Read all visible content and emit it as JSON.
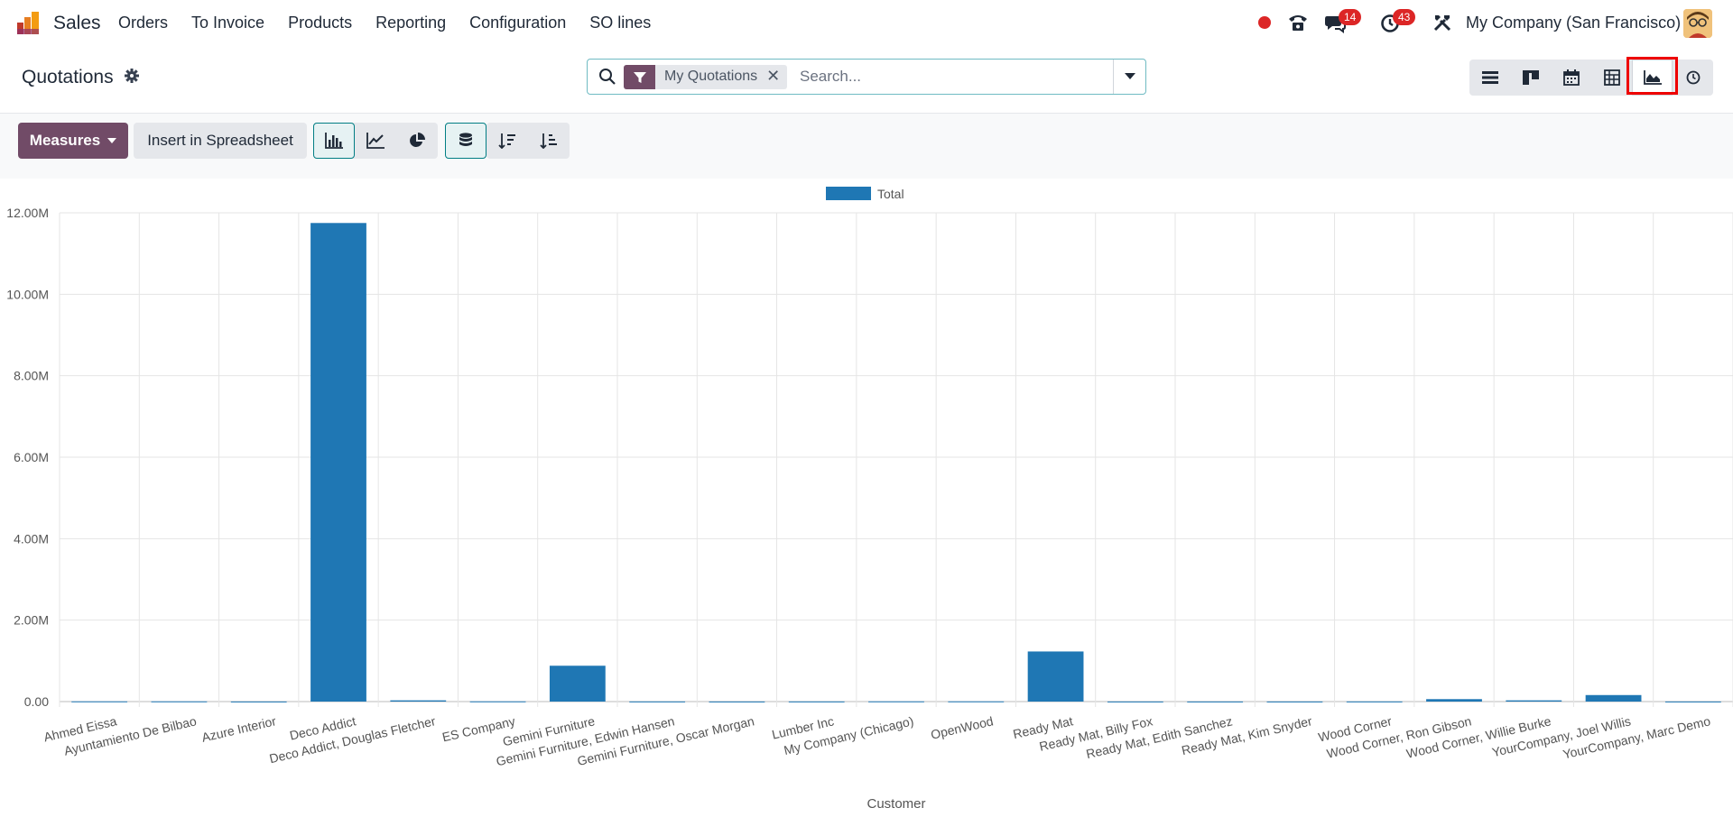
{
  "app": {
    "name": "Sales",
    "brand_color": "#714b67"
  },
  "menu": [
    "Orders",
    "To Invoice",
    "Products",
    "Reporting",
    "Configuration",
    "SO lines"
  ],
  "systray": {
    "messages_count": "14",
    "activities_count": "43",
    "company": "My Company (San Francisco)"
  },
  "page": {
    "title": "Quotations"
  },
  "search": {
    "facet": "My Quotations",
    "placeholder": "Search..."
  },
  "views": [
    "list-view-icon",
    "kanban-view-icon",
    "calendar-view-icon",
    "pivot-view-icon",
    "graph-view-icon",
    "activity-view-icon"
  ],
  "toolbar": {
    "measures_label": "Measures",
    "spreadsheet_label": "Insert in Spreadsheet"
  },
  "chart_data": {
    "type": "bar",
    "xlabel": "Customer",
    "ylabel": "",
    "ylim": [
      0,
      12000000
    ],
    "yticks": [
      "0.00",
      "2.00M",
      "4.00M",
      "6.00M",
      "8.00M",
      "10.00M",
      "12.00M"
    ],
    "grid": true,
    "legend_position": "top-center",
    "categories": [
      "Ahmed Eissa",
      "Ayuntamiento De Bilbao",
      "Azure Interior",
      "Deco Addict",
      "Deco Addict, Douglas Fletcher",
      "ES Company",
      "Gemini Furniture",
      "Gemini Furniture, Edwin Hansen",
      "Gemini Furniture, Oscar Morgan",
      "Lumber Inc",
      "My Company (Chicago)",
      "OpenWood",
      "Ready Mat",
      "Ready Mat, Billy Fox",
      "Ready Mat, Edith Sanchez",
      "Ready Mat, Kim Snyder",
      "Wood Corner",
      "Wood Corner, Ron Gibson",
      "Wood Corner, Willie Burke",
      "YourCompany, Joel Willis",
      "YourCompany, Marc Demo"
    ],
    "series": [
      {
        "name": "Total",
        "color": "#1f77b4",
        "values": [
          5000,
          5000,
          2000,
          11750000,
          30000,
          5000,
          880000,
          3000,
          2000,
          3000,
          5000,
          5000,
          1230000,
          2000,
          2000,
          2000,
          3000,
          60000,
          30000,
          160000,
          2000
        ]
      }
    ]
  }
}
